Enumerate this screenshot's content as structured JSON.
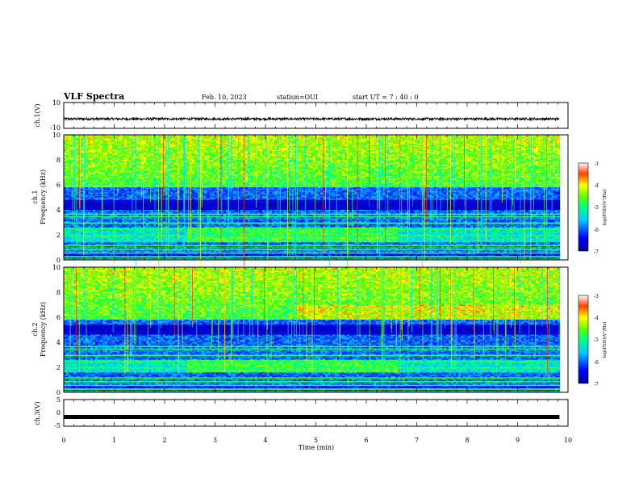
{
  "header": {
    "title": "VLF Spectra",
    "date": "Feb. 10, 2023",
    "station": "station=OUI",
    "start_ut": "start  UT =   7 : 40 : 0"
  },
  "chart_data": [
    {
      "type": "line",
      "panel": "ch1-waveform",
      "ylabel": "ch.1(V)",
      "ylim": [
        -10,
        10
      ],
      "y_tick_labels": [
        "10",
        "-10"
      ],
      "xlim": [
        0,
        10
      ],
      "signal": {
        "mean": -2.7,
        "amplitude": 0.9,
        "end_time_min": 9.83
      }
    },
    {
      "type": "heatmap",
      "panel": "ch1-spectrogram",
      "ylabel_line1": "ch.1",
      "ylabel_line2": "Frequency (kHz)",
      "ylim": [
        0,
        10
      ],
      "y_tick_labels": [
        "0",
        "2",
        "4",
        "6",
        "8",
        "10"
      ],
      "xlim": [
        0,
        10
      ],
      "end_time_min": 9.83,
      "colorbar": {
        "label": "log(PSD)(V²/Hz)",
        "range": [
          -7,
          -3
        ],
        "tick_labels": [
          "-3",
          "-4",
          "-5",
          "-6",
          "-7"
        ]
      },
      "features": {
        "dark_band_khz": [
          4.0,
          4.8
        ],
        "noise_band_khz": [
          1.4,
          2.6
        ],
        "upper_emission_khz": [
          5.8,
          10.0
        ]
      }
    },
    {
      "type": "heatmap",
      "panel": "ch2-spectrogram",
      "ylabel_line1": "ch.2",
      "ylabel_line2": "Frequency (kHz)",
      "ylim": [
        0,
        10
      ],
      "y_tick_labels": [
        "0",
        "2",
        "4",
        "6",
        "8",
        "10"
      ],
      "xlim": [
        0,
        10
      ],
      "end_time_min": 9.83,
      "colorbar": {
        "label": "log(PSD)(V²/Hz)",
        "range": [
          -7,
          -3
        ],
        "tick_labels": [
          "-3",
          "-4",
          "-5",
          "-6",
          "-7"
        ]
      },
      "features": {
        "dark_band_khz": [
          4.6,
          5.4
        ],
        "noise_band_khz": [
          1.6,
          2.6
        ],
        "upper_emission_khz": [
          5.8,
          10.0
        ]
      }
    },
    {
      "type": "line",
      "panel": "ch3-waveform",
      "ylabel": "ch.3(V)",
      "ylim": [
        -5,
        5
      ],
      "y_tick_labels": [
        "5",
        "0",
        "-5"
      ],
      "xlim": [
        0,
        10
      ],
      "signal": {
        "mean": -1.5,
        "amplitude": 0.15,
        "end_time_min": 9.83
      }
    }
  ],
  "x_axis": {
    "label": "Time (min)",
    "tick_labels": [
      "0",
      "1",
      "2",
      "3",
      "4",
      "5",
      "6",
      "7",
      "8",
      "9",
      "10"
    ]
  }
}
